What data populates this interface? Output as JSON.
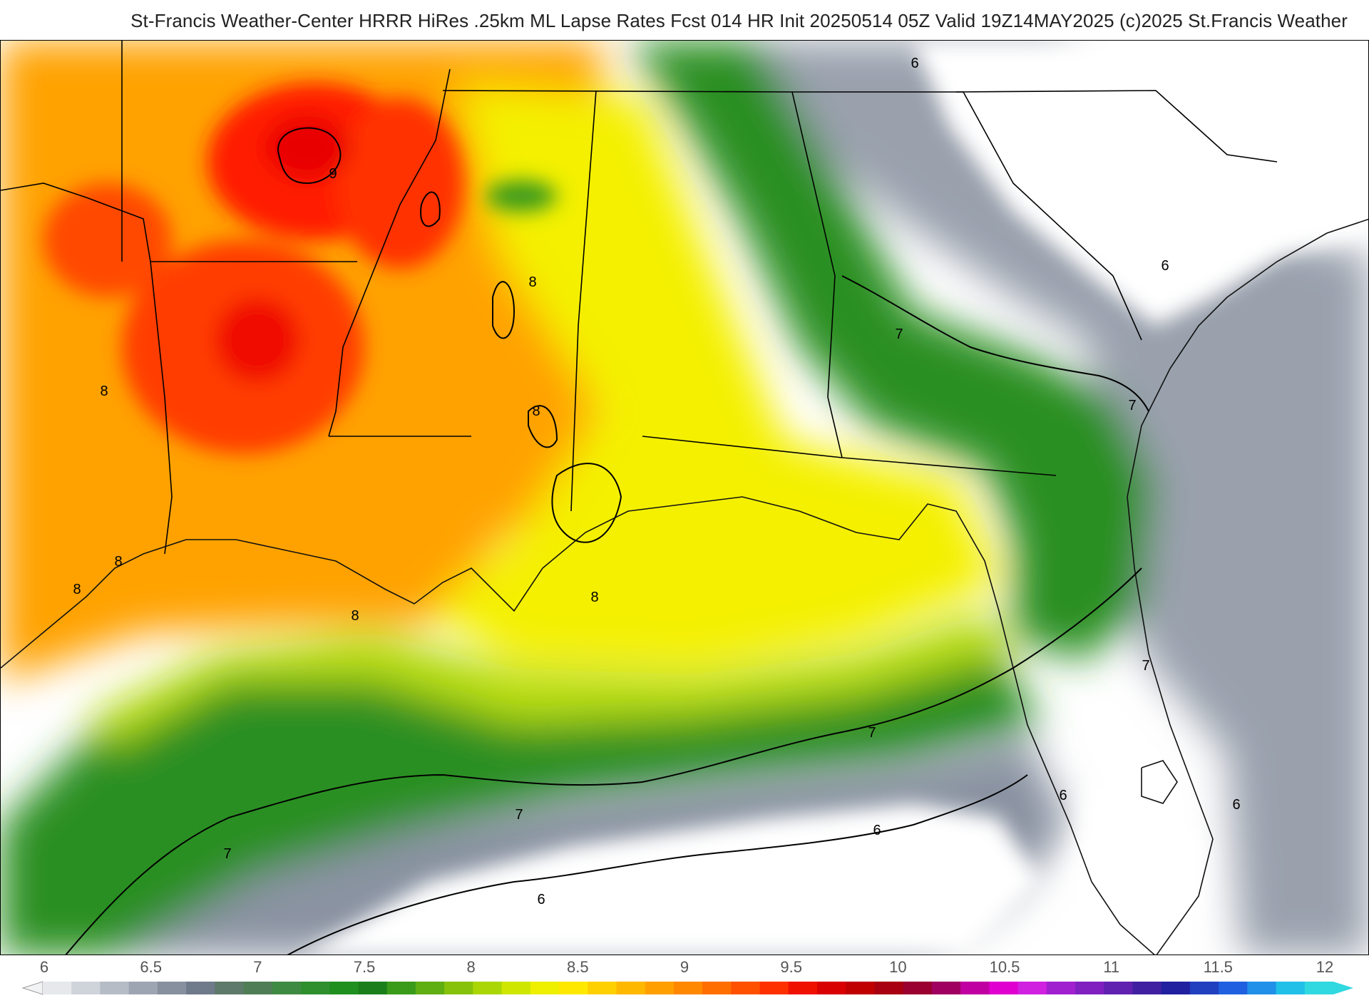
{
  "header": {
    "title": "St-Francis Weather-Center HRRR HiRes .25km ML Lapse Rates  Fcst 014 HR Init 20250514 05Z  Valid 19Z14MAY2025    (c)2025 St.Francis Weather"
  },
  "map": {
    "contour_labels": [
      {
        "text": "9"
      },
      {
        "text": "8"
      },
      {
        "text": "8"
      },
      {
        "text": "8"
      },
      {
        "text": "8"
      },
      {
        "text": "8"
      },
      {
        "text": "8"
      },
      {
        "text": "8"
      },
      {
        "text": "7"
      },
      {
        "text": "7"
      },
      {
        "text": "7"
      },
      {
        "text": "7"
      },
      {
        "text": "7"
      },
      {
        "text": "6"
      },
      {
        "text": "6"
      },
      {
        "text": "6"
      },
      {
        "text": "6"
      },
      {
        "text": "6"
      },
      {
        "text": "6"
      },
      {
        "text": "7"
      }
    ]
  },
  "colorbar": {
    "tick_labels": [
      "6",
      "6.5",
      "7",
      "7.5",
      "8",
      "8.5",
      "9",
      "9.5",
      "10",
      "10.5",
      "11",
      "11.5",
      "12"
    ],
    "colors": [
      "#e6e8ec",
      "#cfd3da",
      "#b6bcc6",
      "#9ea5b2",
      "#87909e",
      "#6f7a8a",
      "#5e7a6a",
      "#4f7d56",
      "#3f8a42",
      "#2f8f2f",
      "#1f8f1f",
      "#1a7f1a",
      "#3a9a1a",
      "#5fae12",
      "#86c20c",
      "#aad606",
      "#cfe600",
      "#eef000",
      "#ffe800",
      "#ffd000",
      "#ffb800",
      "#ffa000",
      "#ff8800",
      "#ff6e00",
      "#ff5000",
      "#ff3000",
      "#f01000",
      "#d80000",
      "#c00000",
      "#a80010",
      "#9a0030",
      "#a00060",
      "#c000a0",
      "#e000d0",
      "#d020e0",
      "#a020d0",
      "#8020c0",
      "#6020b0",
      "#4020a0",
      "#2020a0",
      "#2040c0",
      "#2060e0",
      "#2090e8",
      "#20c0e8",
      "#30d8e0"
    ]
  }
}
